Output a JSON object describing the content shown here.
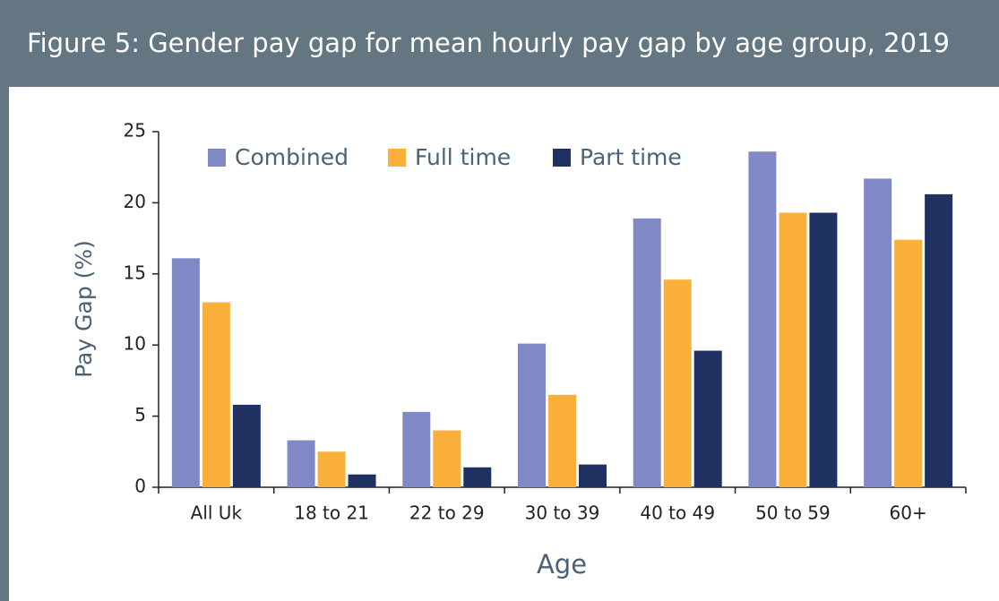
{
  "chart_data": {
    "type": "bar",
    "title": "Figure 5: Gender pay gap for mean hourly pay gap by age group, 2019",
    "x_label": "Age",
    "y_label": "Pay Gap (%)",
    "categories": [
      "All Uk",
      "18 to 21",
      "22 to 29",
      "30 to 39",
      "40 to 49",
      "50 to 59",
      "60+"
    ],
    "series": [
      {
        "name": "Combined",
        "color": "#8088c6",
        "values": [
          16.1,
          3.3,
          5.3,
          10.1,
          18.9,
          23.6,
          21.7
        ]
      },
      {
        "name": "Full time",
        "color": "#fbb03b",
        "values": [
          13.0,
          2.5,
          4.0,
          6.5,
          14.6,
          19.3,
          17.4
        ]
      },
      {
        "name": "Part time",
        "color": "#1f3160",
        "values": [
          5.8,
          0.9,
          1.4,
          1.6,
          9.6,
          19.3,
          20.6
        ]
      }
    ],
    "ylim": [
      0,
      25
    ],
    "yticks": [
      0,
      5,
      10,
      15,
      20,
      25
    ],
    "grid": false,
    "legend": "top-left"
  }
}
